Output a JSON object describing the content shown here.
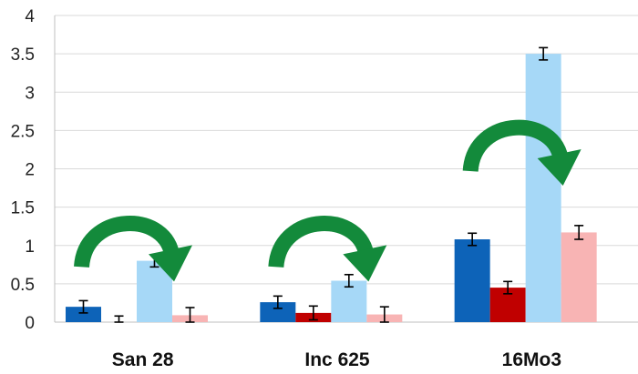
{
  "chart_data": {
    "type": "bar",
    "title": "",
    "xlabel": "",
    "ylabel": "",
    "ylim": [
      0,
      4
    ],
    "yticks": [
      0,
      0.5,
      1,
      1.5,
      2,
      2.5,
      3,
      3.5,
      4
    ],
    "ytick_labels": [
      "0",
      "0.5",
      "1",
      "1.5",
      "2",
      "2.5",
      "3",
      "3.5",
      "4"
    ],
    "grid": true,
    "legend": "none",
    "categories": [
      "San 28",
      "Inc 625",
      "16Mo3"
    ],
    "series": [
      {
        "color": "#0d63b8",
        "values": [
          0.2,
          0.26,
          1.08
        ],
        "errors": [
          0.08,
          0.08,
          0.08
        ]
      },
      {
        "color": "#c00000",
        "values": [
          0.0,
          0.12,
          0.45
        ],
        "errors": [
          0.08,
          0.09,
          0.08
        ]
      },
      {
        "color": "#a6d8f7",
        "values": [
          0.8,
          0.54,
          3.5
        ],
        "errors": [
          0.08,
          0.08,
          0.08
        ]
      },
      {
        "color": "#f8b4b4",
        "values": [
          0.09,
          0.1,
          1.17
        ],
        "errors": [
          0.1,
          0.1,
          0.09
        ]
      }
    ],
    "annotations": [
      {
        "type": "curved-arrow",
        "category": "San 28",
        "direction": "clockwise",
        "color": "#138a3b"
      },
      {
        "type": "curved-arrow",
        "category": "Inc 625",
        "direction": "clockwise",
        "color": "#138a3b"
      },
      {
        "type": "curved-arrow",
        "category": "16Mo3",
        "direction": "clockwise",
        "color": "#138a3b"
      }
    ],
    "colors": {
      "grid": "#d9d9d9",
      "axis": "#bfbfbf",
      "errorbar": "#000000",
      "arrow": "#138a3b"
    }
  }
}
